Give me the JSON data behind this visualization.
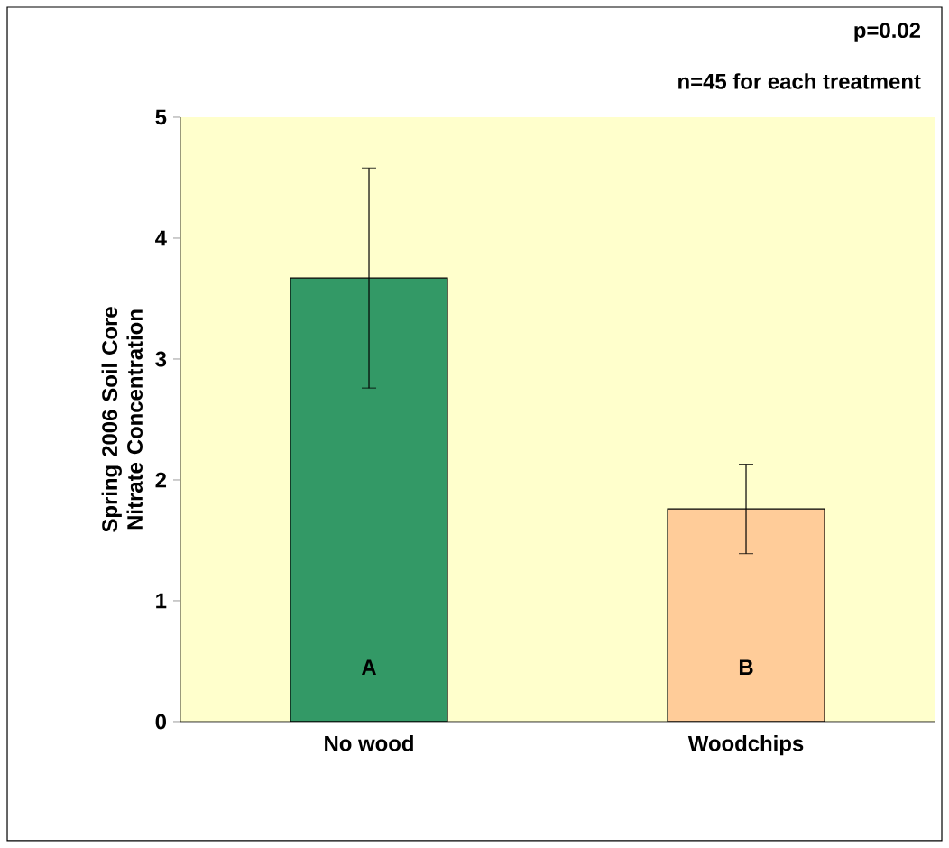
{
  "chart_data": {
    "type": "bar",
    "ylabel": "Spring 2006 Soil Core Nitrate Concentration",
    "categories": [
      "No wood",
      "Woodchips"
    ],
    "values": [
      3.67,
      1.76
    ],
    "colors": [
      "#339966",
      "#ffcc99"
    ],
    "errors": [
      0.91,
      0.37
    ],
    "ylim": [
      0,
      5
    ],
    "yticks": [
      0,
      1,
      2,
      3,
      4,
      5
    ],
    "grid": false,
    "annotations": [
      "p=0.02",
      "n=45 for each treatment",
      "A",
      "B"
    ]
  }
}
